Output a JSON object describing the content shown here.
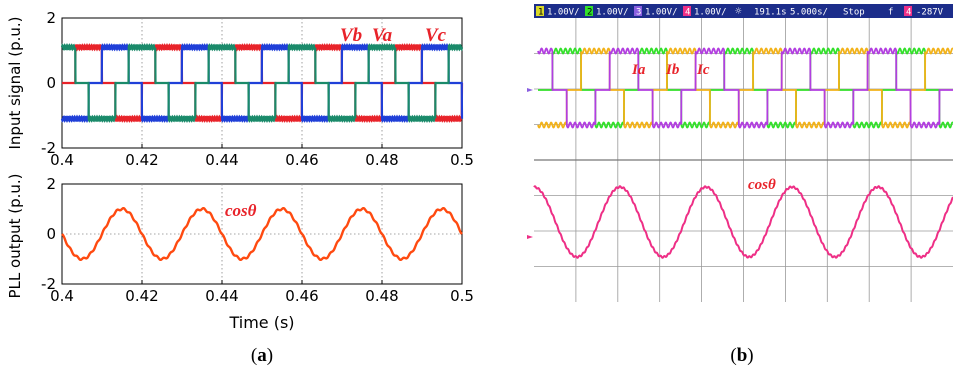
{
  "panel_a": {
    "caption_open": "(",
    "caption_letter": "a",
    "caption_close": ")",
    "plot1": {
      "ylabel": "Input signal (p.u.)",
      "xlim": [
        0.4,
        0.5
      ],
      "ylim": [
        -2,
        2
      ],
      "xticks": [
        "0.4",
        "0.42",
        "0.44",
        "0.46",
        "0.48",
        "0.5"
      ],
      "yticks": [
        "2",
        "0",
        "-2"
      ],
      "labels": [
        "Vb",
        "Va",
        "Vc"
      ],
      "colors": {
        "a": "#e8232a",
        "b": "#1f3fd8",
        "c": "#1a8a6a",
        "label": "#e8232a"
      }
    },
    "plot2": {
      "ylabel": "PLL output (p.u.)",
      "xlabel": "Time (s)",
      "xlim": [
        0.4,
        0.5
      ],
      "ylim": [
        -2,
        2
      ],
      "xticks": [
        "0.4",
        "0.42",
        "0.44",
        "0.46",
        "0.48",
        "0.5"
      ],
      "yticks": [
        "2",
        "0",
        "-2"
      ],
      "label": "cosθ",
      "color": "#ff4a10"
    }
  },
  "panel_b": {
    "caption_open": "(",
    "caption_letter": "b",
    "caption_close": ")",
    "status": {
      "ch1_num": "1",
      "ch1": "1.00V/",
      "ch2_num": "2",
      "ch2": "1.00V/",
      "ch3_num": "3",
      "ch3": "1.00V/",
      "ch4_num": "4",
      "ch4": "1.00V/",
      "time_pos": "191.1s",
      "timebase": "5.000s/",
      "mode": "Stop",
      "trigger": "f",
      "trig_ch": "4",
      "trig_level": "-287V"
    },
    "labels": {
      "ia": "Ia",
      "ib": "Ib",
      "ic": "Ic",
      "cos": "cosθ"
    },
    "colors": {
      "ia": "#33e02a",
      "ib": "#b23ee0",
      "ic": "#f2b21a",
      "cos": "#ee2f86",
      "label": "#e8232a",
      "bar": "#1c2d8a",
      "ch1": "#d9d92a",
      "ch2": "#33e02a",
      "ch3": "#8a5fe0",
      "ch4": "#ee2f86"
    }
  },
  "chart_data": [
    {
      "type": "line",
      "panel": "a-top",
      "ylabel": "Input signal (p.u.)",
      "xlim": [
        0.4,
        0.5
      ],
      "ylim": [
        -2,
        2
      ],
      "grid": true,
      "series": [
        {
          "name": "Va",
          "waveform": "six-step square, amplitude 1.1",
          "frequency_hz": 50,
          "phase_deg": 0
        },
        {
          "name": "Vb",
          "waveform": "six-step square, amplitude 1.1",
          "frequency_hz": 50,
          "phase_deg": -120
        },
        {
          "name": "Vc",
          "waveform": "six-step square, amplitude 1.1",
          "frequency_hz": 50,
          "phase_deg": 120
        }
      ]
    },
    {
      "type": "line",
      "panel": "a-bottom",
      "ylabel": "PLL output (p.u.)",
      "xlabel": "Time (s)",
      "xlim": [
        0.4,
        0.5
      ],
      "ylim": [
        -2,
        2
      ],
      "grid": true,
      "series": [
        {
          "name": "cosθ",
          "amplitude": 1,
          "frequency_hz": 50,
          "peaks_at_s": [
            0.415,
            0.435,
            0.455,
            0.475,
            0.495
          ]
        }
      ]
    },
    {
      "type": "line",
      "panel": "b",
      "source": "oscilloscope",
      "series": [
        {
          "name": "Ia",
          "waveform": "square"
        },
        {
          "name": "Ib",
          "waveform": "square"
        },
        {
          "name": "Ic",
          "waveform": "square"
        },
        {
          "name": "cosθ",
          "waveform": "sine",
          "visible_cycles": 5
        }
      ]
    }
  ]
}
